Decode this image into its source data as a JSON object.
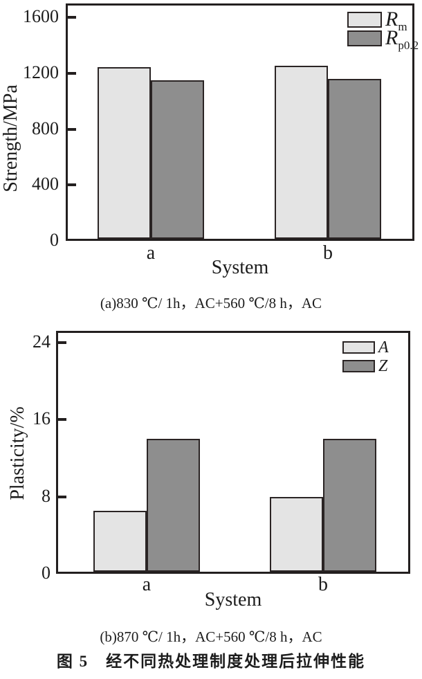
{
  "figure_title": "图 5　经不同热处理制度处理后拉伸性能",
  "colors": {
    "light_series": "#e4e4e4",
    "dark_series": "#8e8e8e",
    "outline": "#2a2424",
    "axis": "#231f1f",
    "text": "#1c1c1c",
    "background": "#ffffff"
  },
  "chart_data": [
    {
      "type": "bar",
      "caption": "(a)830 ℃/ 1h，AC+560 ℃/8 h，AC",
      "title": "",
      "xlabel": "System",
      "ylabel": "Strength/MPa",
      "categories": [
        "a",
        "b"
      ],
      "series": [
        {
          "name": "Rm",
          "label_main": "R",
          "label_sub": "m",
          "color": "#e4e4e4",
          "values": [
            1245,
            1255
          ]
        },
        {
          "name": "Rp0.2",
          "label_main": "R",
          "label_sub": "p0.2",
          "color": "#8e8e8e",
          "values": [
            1150,
            1160
          ]
        }
      ],
      "ylim": [
        0,
        1700
      ],
      "yticks": [
        0,
        400,
        800,
        1200,
        1600
      ],
      "legend_position": "top-right",
      "grid": false
    },
    {
      "type": "bar",
      "caption": "(b)870 ℃/ 1h，AC+560 ℃/8 h，AC",
      "title": "",
      "xlabel": "System",
      "ylabel": "Plasticity/%",
      "categories": [
        "a",
        "b"
      ],
      "series": [
        {
          "name": "A",
          "label_main": "A",
          "label_sub": "",
          "color": "#e4e4e4",
          "values": [
            6.5,
            8
          ]
        },
        {
          "name": "Z",
          "label_main": "Z",
          "label_sub": "",
          "color": "#8e8e8e",
          "values": [
            14,
            14
          ]
        }
      ],
      "ylim": [
        0,
        25.2
      ],
      "yticks": [
        0,
        8,
        16,
        24
      ],
      "legend_position": "top-right",
      "grid": false
    }
  ]
}
